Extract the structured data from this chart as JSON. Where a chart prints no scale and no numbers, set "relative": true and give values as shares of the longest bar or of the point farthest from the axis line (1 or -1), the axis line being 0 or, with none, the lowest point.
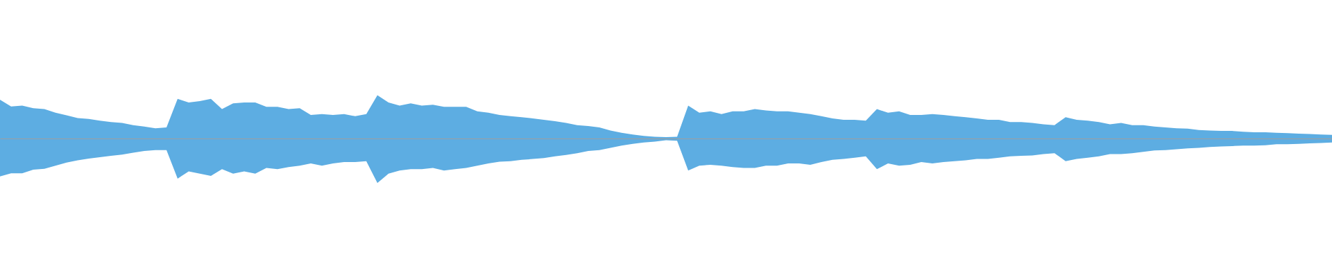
{
  "chart_data": {
    "type": "area",
    "relative": true,
    "categories": [
      null,
      null,
      null,
      null,
      null,
      null,
      null,
      null,
      null,
      null,
      null,
      null,
      null,
      null,
      null,
      null,
      null,
      null,
      null,
      null,
      null,
      null,
      null,
      null,
      null,
      null,
      null,
      null,
      null,
      null,
      null,
      null,
      null,
      null,
      null,
      null,
      null,
      null,
      null,
      null,
      null,
      null,
      null,
      null,
      null,
      null,
      null,
      null,
      null,
      null,
      null,
      null,
      null,
      null,
      null,
      null,
      null,
      null,
      null,
      null,
      null,
      null,
      null,
      null,
      null,
      null,
      null,
      null,
      null,
      null,
      null,
      null,
      null,
      null,
      null,
      null,
      null,
      null,
      null,
      null,
      null,
      null,
      null,
      null,
      null,
      null,
      null,
      null,
      null,
      null,
      null,
      null,
      null,
      null,
      null,
      null,
      null,
      null,
      null,
      null,
      null,
      null,
      null,
      null,
      null,
      null,
      null,
      null,
      null,
      null,
      null,
      null,
      null,
      null,
      null,
      null,
      null,
      null,
      null,
      null,
      null
    ],
    "series": [
      {
        "color": "#5dade2",
        "values": [
          0.87,
          0.72,
          0.74,
          0.68,
          0.66,
          0.58,
          0.52,
          0.46,
          0.44,
          0.4,
          0.37,
          0.35,
          0.3,
          0.27,
          0.23,
          0.25,
          0.89,
          0.81,
          0.84,
          0.89,
          0.66,
          0.79,
          0.81,
          0.81,
          0.71,
          0.71,
          0.66,
          0.68,
          0.53,
          0.55,
          0.53,
          0.55,
          0.5,
          0.55,
          0.97,
          0.81,
          0.74,
          0.79,
          0.74,
          0.76,
          0.71,
          0.71,
          0.71,
          0.61,
          0.58,
          0.53,
          0.5,
          0.48,
          0.45,
          0.42,
          0.39,
          0.35,
          0.3,
          0.28,
          0.25,
          0.18,
          0.13,
          0.09,
          0.06,
          0.04,
          0.03,
          0.04,
          0.74,
          0.58,
          0.61,
          0.55,
          0.61,
          0.61,
          0.66,
          0.63,
          0.61,
          0.61,
          0.58,
          0.55,
          0.5,
          0.45,
          0.42,
          0.42,
          0.4,
          0.66,
          0.58,
          0.61,
          0.53,
          0.53,
          0.55,
          0.53,
          0.5,
          0.48,
          0.45,
          0.42,
          0.42,
          0.37,
          0.37,
          0.35,
          0.32,
          0.3,
          0.48,
          0.42,
          0.4,
          0.37,
          0.32,
          0.35,
          0.3,
          0.3,
          0.27,
          0.25,
          0.23,
          0.22,
          0.19,
          0.18,
          0.17,
          0.17,
          0.15,
          0.14,
          0.14,
          0.13,
          0.12,
          0.11,
          0.1,
          0.09,
          0.08
        ]
      },
      {
        "color": "#5dade2",
        "values": [
          -0.85,
          -0.78,
          -0.78,
          -0.7,
          -0.68,
          -0.61,
          -0.54,
          -0.49,
          -0.45,
          -0.42,
          -0.39,
          -0.36,
          -0.32,
          -0.28,
          -0.26,
          -0.26,
          -0.9,
          -0.74,
          -0.79,
          -0.84,
          -0.69,
          -0.79,
          -0.74,
          -0.79,
          -0.66,
          -0.69,
          -0.64,
          -0.61,
          -0.56,
          -0.61,
          -0.56,
          -0.53,
          -0.53,
          -0.51,
          -1,
          -0.79,
          -0.72,
          -0.69,
          -0.69,
          -0.66,
          -0.72,
          -0.69,
          -0.66,
          -0.61,
          -0.56,
          -0.52,
          -0.51,
          -0.48,
          -0.46,
          -0.44,
          -0.4,
          -0.37,
          -0.33,
          -0.28,
          -0.26,
          -0.21,
          -0.16,
          -0.12,
          -0.09,
          -0.07,
          -0.04,
          -0.05,
          -0.72,
          -0.61,
          -0.59,
          -0.61,
          -0.64,
          -0.66,
          -0.66,
          -0.61,
          -0.61,
          -0.56,
          -0.56,
          -0.59,
          -0.53,
          -0.48,
          -0.46,
          -0.43,
          -0.4,
          -0.69,
          -0.56,
          -0.61,
          -0.59,
          -0.53,
          -0.56,
          -0.53,
          -0.51,
          -0.49,
          -0.46,
          -0.46,
          -0.43,
          -0.4,
          -0.39,
          -0.38,
          -0.35,
          -0.33,
          -0.51,
          -0.46,
          -0.43,
          -0.4,
          -0.35,
          -0.35,
          -0.33,
          -0.3,
          -0.27,
          -0.26,
          -0.24,
          -0.22,
          -0.21,
          -0.19,
          -0.18,
          -0.17,
          -0.16,
          -0.16,
          -0.15,
          -0.13,
          -0.13,
          -0.12,
          -0.11,
          -0.1,
          -0.09
        ]
      }
    ]
  }
}
